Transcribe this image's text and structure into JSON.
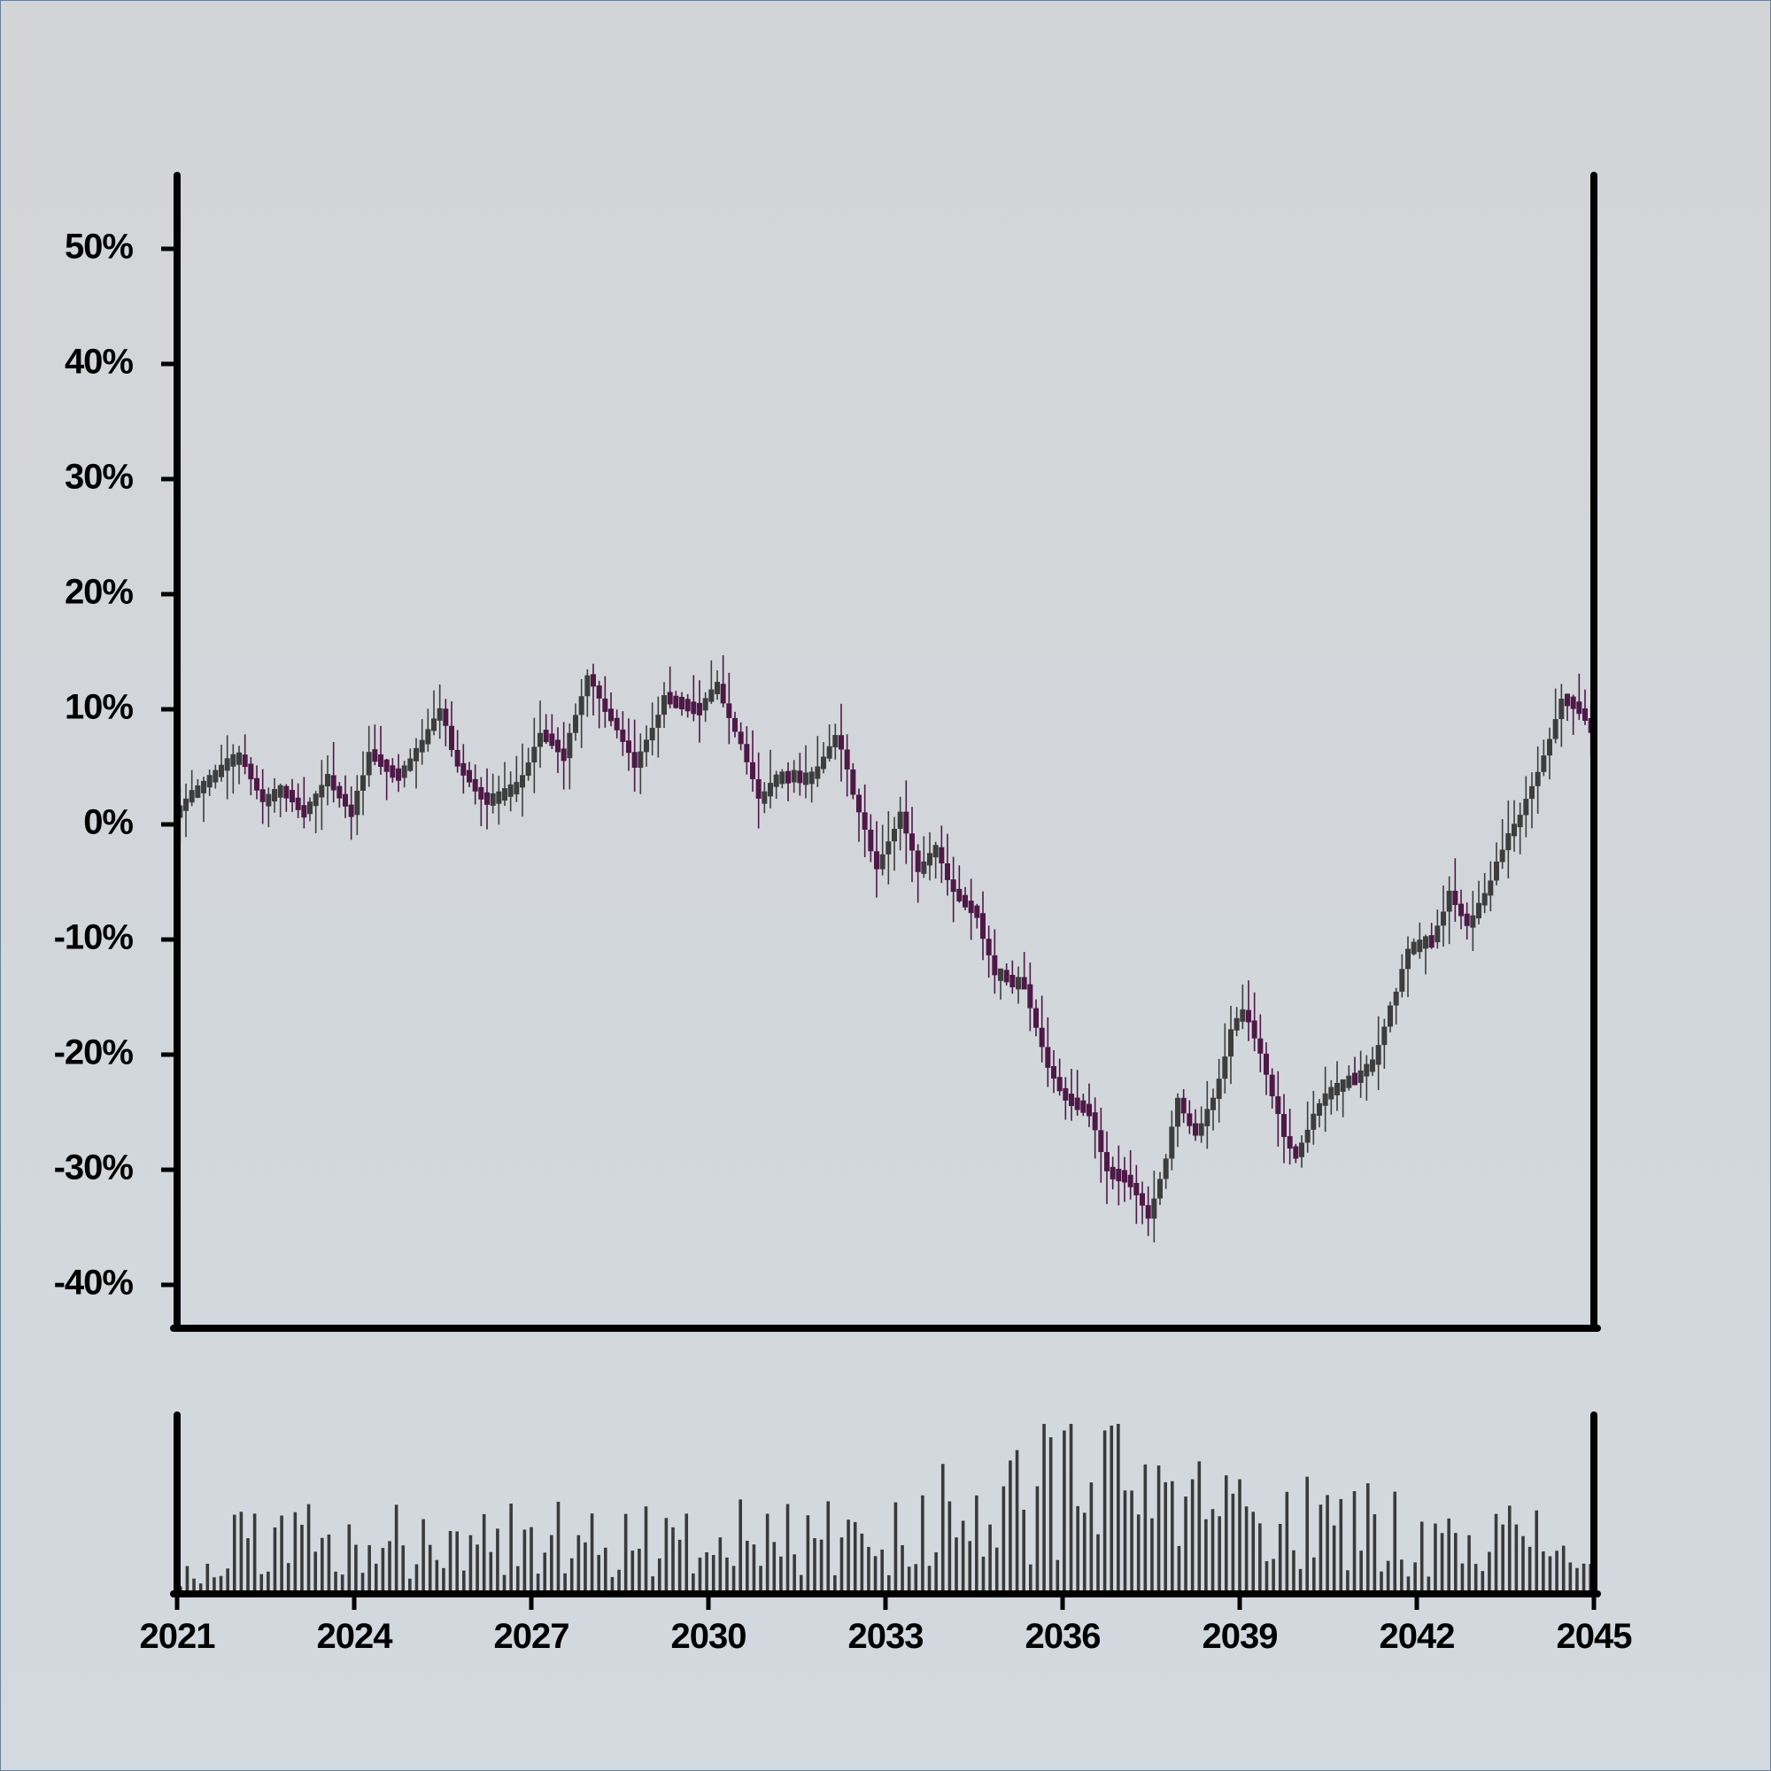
{
  "colors": {
    "background_top": "#d3d4d6",
    "background_bottom": "#d2d9df",
    "axis": "#000000",
    "up_candle": "#3d3d3d",
    "down_candle": "#4e1847",
    "volume_bar": "#3a3a3a"
  },
  "chart_data": {
    "type": "candlestick",
    "panels": [
      "price",
      "volume"
    ],
    "y_axis": {
      "ticks": [
        50,
        40,
        30,
        20,
        10,
        0,
        -10,
        -20,
        -30,
        -40
      ],
      "tick_labels": [
        "50%",
        "40%",
        "30%",
        "20%",
        "10%",
        "0%",
        "-10%",
        "-20%",
        "-30%",
        "-40%"
      ],
      "range": [
        -44,
        56
      ],
      "unit": "%"
    },
    "x_axis": {
      "ticks": [
        2021,
        2024,
        2027,
        2030,
        2033,
        2036,
        2039,
        2042,
        2045
      ],
      "tick_labels": [
        "2021",
        "2024",
        "2027",
        "2030",
        "2033",
        "2036",
        "2039",
        "2042",
        "2045"
      ],
      "range": [
        2021,
        2045
      ]
    },
    "grid": false,
    "legend": "none",
    "trend_anchors": [
      [
        2021.0,
        1
      ],
      [
        2021.8,
        5
      ],
      [
        2022.1,
        6
      ],
      [
        2022.5,
        2
      ],
      [
        2022.8,
        3
      ],
      [
        2023.2,
        1
      ],
      [
        2023.6,
        4
      ],
      [
        2024.0,
        1
      ],
      [
        2024.3,
        6
      ],
      [
        2024.8,
        4
      ],
      [
        2025.3,
        8
      ],
      [
        2025.5,
        10
      ],
      [
        2025.8,
        5
      ],
      [
        2026.3,
        2
      ],
      [
        2026.8,
        3
      ],
      [
        2027.2,
        8
      ],
      [
        2027.6,
        6
      ],
      [
        2028.0,
        13
      ],
      [
        2028.4,
        9
      ],
      [
        2028.8,
        5
      ],
      [
        2029.3,
        11
      ],
      [
        2029.9,
        10
      ],
      [
        2030.2,
        12
      ],
      [
        2030.6,
        7
      ],
      [
        2030.9,
        2
      ],
      [
        2031.2,
        4
      ],
      [
        2031.8,
        4
      ],
      [
        2032.2,
        8
      ],
      [
        2032.6,
        1
      ],
      [
        2032.9,
        -4
      ],
      [
        2033.3,
        1
      ],
      [
        2033.6,
        -4
      ],
      [
        2033.9,
        -2
      ],
      [
        2034.2,
        -6
      ],
      [
        2034.6,
        -8
      ],
      [
        2034.9,
        -13
      ],
      [
        2035.4,
        -14
      ],
      [
        2035.8,
        -21
      ],
      [
        2036.1,
        -24
      ],
      [
        2036.5,
        -25
      ],
      [
        2036.8,
        -30
      ],
      [
        2037.2,
        -31
      ],
      [
        2037.5,
        -34
      ],
      [
        2037.8,
        -29
      ],
      [
        2038.0,
        -24
      ],
      [
        2038.3,
        -27
      ],
      [
        2038.6,
        -24
      ],
      [
        2038.9,
        -18
      ],
      [
        2039.1,
        -16
      ],
      [
        2039.4,
        -20
      ],
      [
        2039.8,
        -27
      ],
      [
        2040.0,
        -29
      ],
      [
        2040.3,
        -25
      ],
      [
        2040.6,
        -23
      ],
      [
        2041.0,
        -22
      ],
      [
        2041.3,
        -21
      ],
      [
        2041.6,
        -16
      ],
      [
        2041.9,
        -11
      ],
      [
        2042.3,
        -10
      ],
      [
        2042.6,
        -6
      ],
      [
        2042.9,
        -9
      ],
      [
        2043.2,
        -6
      ],
      [
        2043.5,
        -2
      ],
      [
        2043.9,
        2
      ],
      [
        2044.2,
        6
      ],
      [
        2044.5,
        11
      ],
      [
        2044.8,
        10
      ],
      [
        2045.0,
        8
      ],
      [
        2045.0,
        6
      ]
    ],
    "volume_profile": [
      [
        2021.0,
        0.15
      ],
      [
        2022.0,
        0.3
      ],
      [
        2024.0,
        0.35
      ],
      [
        2027.0,
        0.35
      ],
      [
        2030.0,
        0.35
      ],
      [
        2033.0,
        0.35
      ],
      [
        2034.5,
        0.55
      ],
      [
        2036.0,
        0.7
      ],
      [
        2038.0,
        0.55
      ],
      [
        2040.0,
        0.45
      ],
      [
        2042.0,
        0.4
      ],
      [
        2044.0,
        0.35
      ],
      [
        2045.0,
        0.2
      ]
    ]
  }
}
